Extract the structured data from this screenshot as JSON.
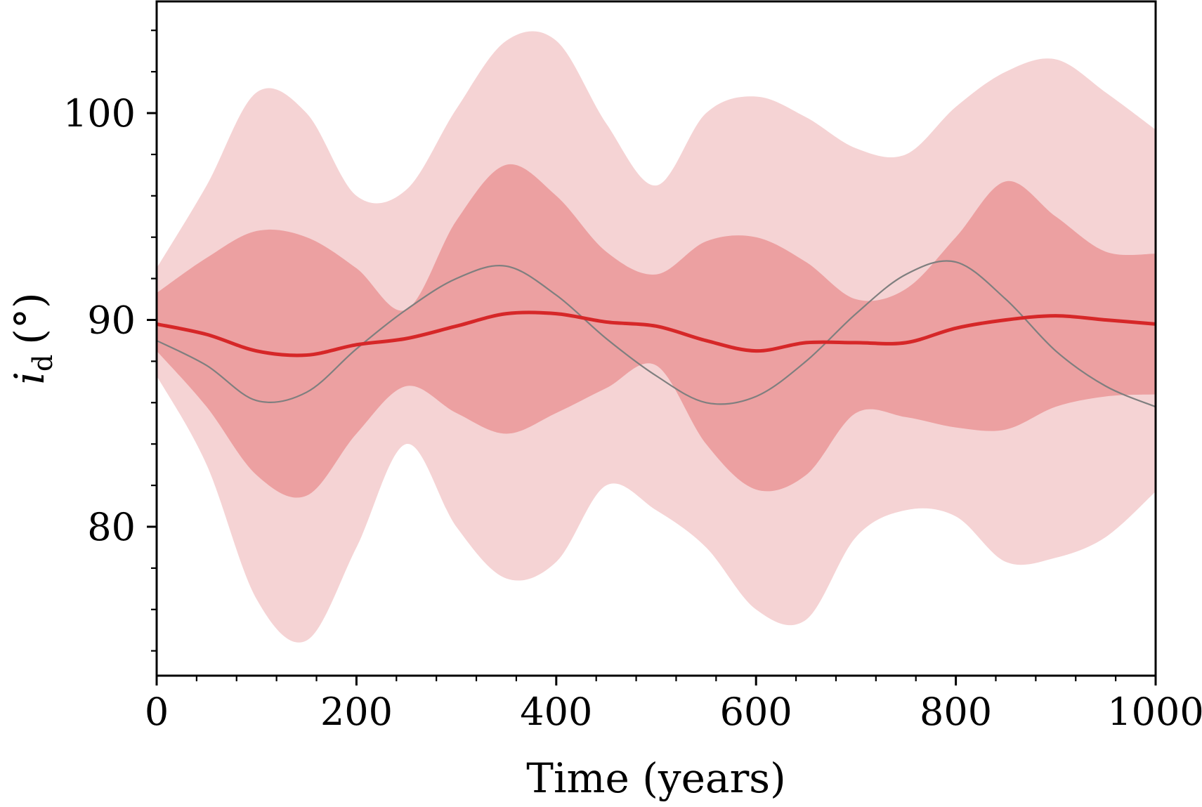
{
  "chart_data": {
    "type": "area",
    "title": "",
    "xlabel": "Time (years)",
    "ylabel_main": "i",
    "ylabel_sub": "d",
    "ylabel_unit": "(°)",
    "xlim": [
      0,
      1000
    ],
    "ylim": [
      72.8,
      105.4
    ],
    "xticks": [
      0,
      200,
      400,
      600,
      800,
      1000
    ],
    "xtick_labels": [
      "0",
      "200",
      "400",
      "600",
      "800",
      "1000"
    ],
    "xminor_step": 40,
    "yticks": [
      80,
      90,
      100
    ],
    "ytick_labels": [
      "80",
      "90",
      "100"
    ],
    "yminor_step": 2,
    "grid": false,
    "legend": "none",
    "x": [
      0,
      50,
      100,
      150,
      200,
      250,
      300,
      350,
      400,
      450,
      500,
      550,
      600,
      650,
      700,
      750,
      800,
      850,
      900,
      950,
      1000
    ],
    "series": [
      {
        "name": "outer-band",
        "kind": "band",
        "color": "#f5d3d4",
        "upper": [
          92.5,
          96.5,
          101.0,
          100.0,
          96.0,
          96.3,
          100.2,
          103.5,
          103.5,
          99.5,
          96.5,
          100.0,
          100.8,
          99.8,
          98.3,
          98.0,
          100.3,
          102.0,
          102.6,
          101.0,
          99.2
        ],
        "lower": [
          87.3,
          83.0,
          76.5,
          74.5,
          79.0,
          84.0,
          80.0,
          77.5,
          78.3,
          82.0,
          80.8,
          79.0,
          76.0,
          75.5,
          79.5,
          80.8,
          80.5,
          78.3,
          78.5,
          79.5,
          81.7
        ]
      },
      {
        "name": "inner-band",
        "kind": "band",
        "color": "#eca0a1",
        "upper": [
          91.3,
          93.0,
          94.3,
          94.0,
          92.5,
          90.5,
          94.8,
          97.5,
          96.0,
          93.3,
          92.2,
          93.8,
          94.0,
          92.8,
          91.0,
          91.5,
          94.0,
          96.7,
          95.0,
          93.3,
          93.2
        ],
        "lower": [
          88.5,
          85.8,
          82.5,
          81.5,
          84.5,
          86.8,
          85.5,
          84.5,
          85.5,
          86.7,
          87.8,
          84.0,
          81.8,
          82.5,
          85.5,
          85.3,
          84.8,
          84.7,
          85.8,
          86.3,
          86.4
        ]
      },
      {
        "name": "mean",
        "kind": "line",
        "color": "#d62728",
        "values": [
          89.8,
          89.3,
          88.5,
          88.3,
          88.8,
          89.1,
          89.7,
          90.3,
          90.3,
          89.9,
          89.7,
          89.0,
          88.5,
          88.9,
          88.9,
          88.9,
          89.6,
          90.0,
          90.2,
          90.0,
          89.8
        ]
      },
      {
        "name": "reference",
        "kind": "line",
        "color": "#7f7f7f",
        "values": [
          89.0,
          87.8,
          86.1,
          86.5,
          88.6,
          90.5,
          92.0,
          92.6,
          91.2,
          89.1,
          87.3,
          86.0,
          86.3,
          88.0,
          90.3,
          92.2,
          92.8,
          91.0,
          88.5,
          86.8,
          85.8
        ]
      }
    ]
  }
}
